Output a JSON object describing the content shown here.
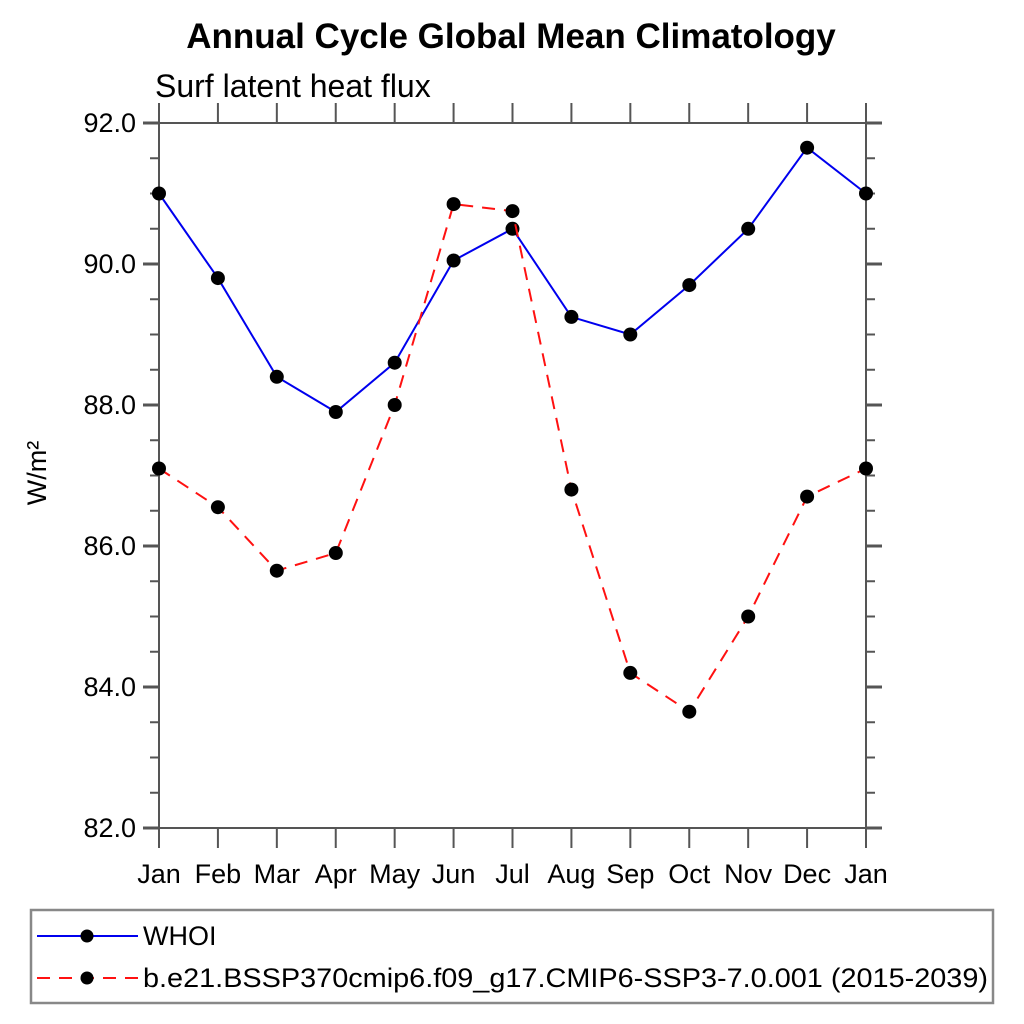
{
  "chart_data": {
    "type": "line",
    "title": "Annual Cycle Global Mean Climatology",
    "subtitle": "Surf latent heat flux",
    "ylabel": "W/m²",
    "xlabel": "",
    "categories": [
      "Jan",
      "Feb",
      "Mar",
      "Apr",
      "May",
      "Jun",
      "Jul",
      "Aug",
      "Sep",
      "Oct",
      "Nov",
      "Dec",
      "Jan"
    ],
    "ylim": [
      82.0,
      92.0
    ],
    "ytick_major_values": [
      92.0,
      90.0,
      88.0,
      86.0,
      84.0,
      82.0
    ],
    "ytick_major_labels": [
      "92.0",
      "90.0",
      "88.0",
      "86.0",
      "84.0",
      "82.0"
    ],
    "ytick_minor_step": 0.5,
    "grid": false,
    "legend_position": "bottom-left-box",
    "frame_color": "#555555",
    "text_color": "#000000",
    "series": [
      {
        "name": "WHOI",
        "color": "#0000ee",
        "line_style": "solid",
        "marker": "filled-circle",
        "marker_color": "#000000",
        "values": [
          91.0,
          89.8,
          88.4,
          87.9,
          88.6,
          90.05,
          90.5,
          89.25,
          89.0,
          89.7,
          90.5,
          91.65,
          91.0
        ]
      },
      {
        "name": "b.e21.BSSP370cmip6.f09_g17.CMIP6-SSP3-7.0.001 (2015-2039)",
        "color": "#ff1111",
        "line_style": "dashed",
        "marker": "filled-circle",
        "marker_color": "#000000",
        "values": [
          87.1,
          86.55,
          85.65,
          85.9,
          88.0,
          90.85,
          90.75,
          86.8,
          84.2,
          83.65,
          85.0,
          86.7,
          87.1
        ]
      }
    ]
  }
}
